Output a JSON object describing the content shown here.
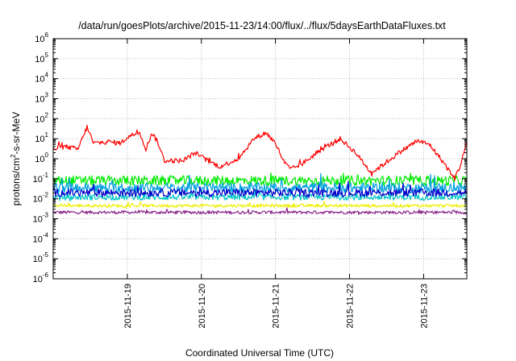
{
  "chart_data": {
    "type": "line",
    "title": "/data/run/goesPlots/archive/2015-11-23/14:00/flux/../flux/5daysEarthDataFluxes.txt",
    "xlabel": "Coordinated Universal Time (UTC)",
    "ylabel": {
      "base": "protons/cm",
      "sup": "2",
      "rest": "-s-sr-MeV"
    },
    "yscale": "log",
    "ylim": [
      1e-06,
      1000000.0
    ],
    "yticks": [
      {
        "base": "10",
        "exp": "6",
        "value": 1000000.0
      },
      {
        "base": "10",
        "exp": "5",
        "value": 100000.0
      },
      {
        "base": "10",
        "exp": "4",
        "value": 10000.0
      },
      {
        "base": "10",
        "exp": "3",
        "value": 1000.0
      },
      {
        "base": "10",
        "exp": "2",
        "value": 100.0
      },
      {
        "base": "10",
        "exp": "1",
        "value": 10
      },
      {
        "base": "10",
        "exp": "0",
        "value": 1
      },
      {
        "base": "10",
        "exp": "-1",
        "value": 0.1
      },
      {
        "base": "10",
        "exp": "-2",
        "value": 0.01
      },
      {
        "base": "10",
        "exp": "-3",
        "value": 0.001
      },
      {
        "base": "10",
        "exp": "-4",
        "value": 0.0001
      },
      {
        "base": "10",
        "exp": "-5",
        "value": 1e-05
      },
      {
        "base": "10",
        "exp": "-6",
        "value": 1e-06
      }
    ],
    "xlim": [
      "2015-11-18T00:00",
      "2015-11-23T14:00"
    ],
    "xticks": [
      {
        "label": "2015-11-19",
        "value": "2015-11-19T00:00"
      },
      {
        "label": "2015-11-20",
        "value": "2015-11-20T00:00"
      },
      {
        "label": "2015-11-21",
        "value": "2015-11-21T00:00"
      },
      {
        "label": "2015-11-22",
        "value": "2015-11-22T00:00"
      },
      {
        "label": "2015-11-23",
        "value": "2015-11-23T00:00"
      }
    ],
    "grid": true,
    "legend": "none",
    "series": [
      {
        "color": "#ff0000",
        "noise": 0.12,
        "points": [
          [
            "2015-11-18T00:00",
            3.0
          ],
          [
            "2015-11-18T04:00",
            4.0
          ],
          [
            "2015-11-18T08:00",
            3.0
          ],
          [
            "2015-11-18T11:00",
            40
          ],
          [
            "2015-11-18T13:00",
            6.0
          ],
          [
            "2015-11-18T18:00",
            7.0
          ],
          [
            "2015-11-18T22:00",
            6.0
          ],
          [
            "2015-11-19T00:00",
            12
          ],
          [
            "2015-11-19T04:00",
            22
          ],
          [
            "2015-11-19T06:00",
            3.0
          ],
          [
            "2015-11-19T08:00",
            20
          ],
          [
            "2015-11-19T10:00",
            6.0
          ],
          [
            "2015-11-19T12:00",
            0.8
          ],
          [
            "2015-11-19T18:00",
            0.8
          ],
          [
            "2015-11-19T22:00",
            2.0
          ],
          [
            "2015-11-20T02:00",
            0.8
          ],
          [
            "2015-11-20T06:00",
            0.4
          ],
          [
            "2015-11-20T12:00",
            1.0
          ],
          [
            "2015-11-20T17:00",
            10
          ],
          [
            "2015-11-20T21:00",
            20
          ],
          [
            "2015-11-21T00:00",
            6.0
          ],
          [
            "2015-11-21T03:00",
            0.6
          ],
          [
            "2015-11-21T05:00",
            0.3
          ],
          [
            "2015-11-21T09:00",
            0.6
          ],
          [
            "2015-11-21T15:00",
            3.0
          ],
          [
            "2015-11-21T21:00",
            10
          ],
          [
            "2015-11-22T02:00",
            2.0
          ],
          [
            "2015-11-22T07:00",
            0.2
          ],
          [
            "2015-11-22T10:00",
            0.4
          ],
          [
            "2015-11-22T16:00",
            2.0
          ],
          [
            "2015-11-22T22:00",
            8.0
          ],
          [
            "2015-11-23T02:00",
            5.0
          ],
          [
            "2015-11-23T07:00",
            0.5
          ],
          [
            "2015-11-23T10:00",
            0.1
          ],
          [
            "2015-11-23T12:00",
            0.5
          ],
          [
            "2015-11-23T14:00",
            7.0
          ]
        ]
      },
      {
        "color": "#00ee00",
        "noise": 0.25,
        "points": [
          [
            "2015-11-18T00:00",
            0.08
          ],
          [
            "2015-11-23T14:00",
            0.08
          ]
        ]
      },
      {
        "color": "#00a0e0",
        "noise": 0.25,
        "points": [
          [
            "2015-11-18T00:00",
            0.035
          ],
          [
            "2015-11-23T14:00",
            0.035
          ]
        ]
      },
      {
        "color": "#0000cc",
        "noise": 0.2,
        "points": [
          [
            "2015-11-18T00:00",
            0.02
          ],
          [
            "2015-11-23T14:00",
            0.02
          ]
        ]
      },
      {
        "color": "#00c8c8",
        "noise": 0.15,
        "points": [
          [
            "2015-11-18T00:00",
            0.012
          ],
          [
            "2015-11-23T14:00",
            0.012
          ]
        ]
      },
      {
        "color": "#eeee00",
        "noise": 0.08,
        "points": [
          [
            "2015-11-18T00:00",
            0.0045
          ],
          [
            "2015-11-23T14:00",
            0.0045
          ]
        ]
      },
      {
        "color": "#882288",
        "noise": 0.08,
        "points": [
          [
            "2015-11-18T00:00",
            0.0021
          ],
          [
            "2015-11-23T14:00",
            0.0021
          ]
        ]
      }
    ]
  }
}
